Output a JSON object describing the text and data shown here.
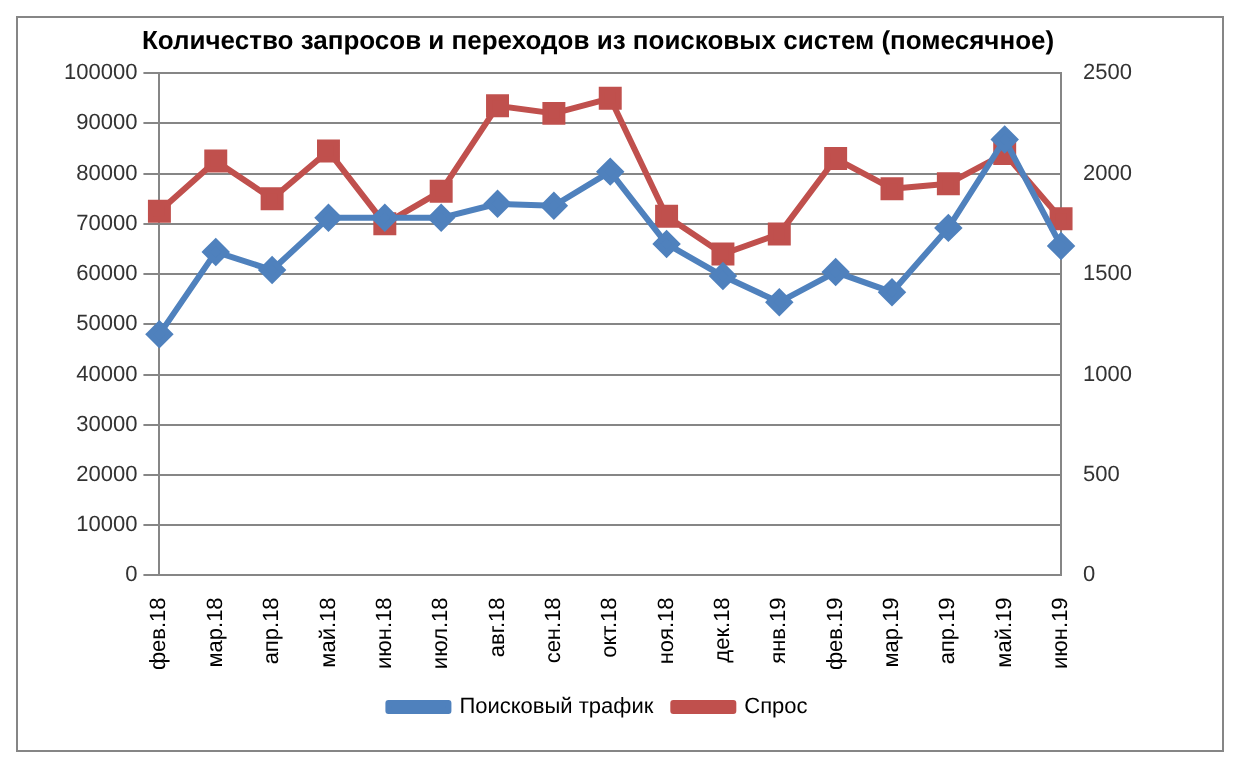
{
  "chart_data": {
    "type": "line",
    "title": "Количество запросов и переходов из поисковых систем (помесячное)",
    "categories": [
      "фев.18",
      "мар.18",
      "апр.18",
      "май.18",
      "июн.18",
      "июл.18",
      "авг.18",
      "сен.18",
      "окт.18",
      "ноя.18",
      "дек.18",
      "янв.19",
      "фев.19",
      "мар.19",
      "апр.19",
      "май.19",
      "июн.19"
    ],
    "series": [
      {
        "name": "Спрос",
        "color": "#c0504d",
        "marker": "square",
        "values": [
          72500,
          82500,
          75000,
          84500,
          70000,
          76500,
          93500,
          92000,
          95000,
          71500,
          64000,
          68000,
          83000,
          77000,
          78000,
          84000,
          71000
        ]
      },
      {
        "name": "Поисковый трафик",
        "color": "#4f81bd",
        "marker": "diamond",
        "axis": "y2",
        "values": [
          1200,
          1610,
          1520,
          1780,
          1780,
          1780,
          1850,
          1840,
          2010,
          1650,
          1490,
          1360,
          1510,
          1410,
          1730,
          2170,
          1640
        ]
      }
    ],
    "ylim": [
      0,
      100000
    ],
    "yticks": [
      0,
      10000,
      20000,
      30000,
      40000,
      50000,
      60000,
      70000,
      80000,
      90000,
      100000
    ],
    "y2lim": [
      0,
      2500
    ],
    "y2ticks": [
      0,
      500,
      1000,
      1500,
      2000,
      2500
    ],
    "grid": "y",
    "legend": "bottom"
  }
}
